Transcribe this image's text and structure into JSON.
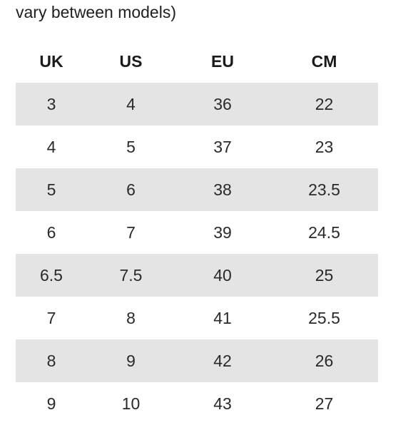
{
  "intro_text": "vary between models)",
  "table": {
    "headers": [
      "UK",
      "US",
      "EU",
      "CM"
    ],
    "rows": [
      [
        "3",
        "4",
        "36",
        "22"
      ],
      [
        "4",
        "5",
        "37",
        "23"
      ],
      [
        "5",
        "6",
        "38",
        "23.5"
      ],
      [
        "6",
        "7",
        "39",
        "24.5"
      ],
      [
        "6.5",
        "7.5",
        "40",
        "25"
      ],
      [
        "7",
        "8",
        "41",
        "25.5"
      ],
      [
        "8",
        "9",
        "42",
        "26"
      ],
      [
        "9",
        "10",
        "43",
        "27"
      ]
    ],
    "shaded_row_color": "#e4e4e4"
  }
}
